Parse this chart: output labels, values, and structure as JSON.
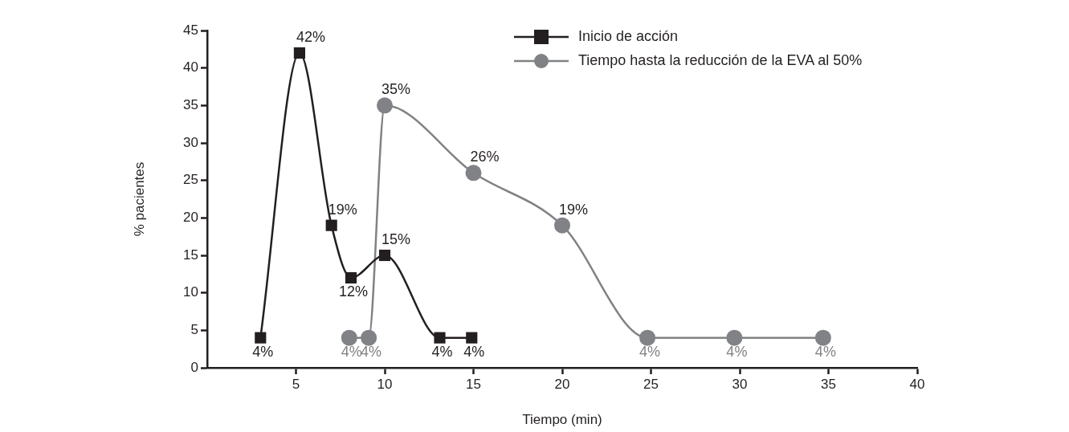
{
  "chart_data": {
    "type": "line",
    "xlabel": "Tiempo (min)",
    "ylabel": "% pacientes",
    "xlim": [
      0,
      40
    ],
    "xticks": [
      5,
      10,
      15,
      20,
      25,
      30,
      35,
      40
    ],
    "ylim": [
      0,
      45
    ],
    "yticks": [
      0,
      5,
      10,
      15,
      20,
      25,
      30,
      35,
      40,
      45
    ],
    "legend": "top",
    "series": [
      {
        "name": "Inicio de acción",
        "color": "#231f20",
        "marker": "square",
        "x": [
          3,
          5.2,
          7,
          8.1,
          10,
          13.1,
          14.9
        ],
        "values": [
          4,
          42,
          19,
          12,
          15,
          4,
          4
        ],
        "value_labels": [
          "4%",
          "42%",
          "19%",
          "12%",
          "15%",
          "4%",
          "4%"
        ]
      },
      {
        "name": "Tiempo hasta la reducción de la EVA al 50%",
        "color": "#808285",
        "marker": "circle",
        "x": [
          8,
          9.1,
          10,
          15,
          20,
          24.8,
          29.7,
          34.7
        ],
        "values": [
          4,
          4,
          35,
          26,
          19,
          4,
          4,
          4
        ],
        "value_labels": [
          "4%",
          "4%",
          "35%",
          "26%",
          "19%",
          "4%",
          "4%",
          "4%"
        ]
      }
    ]
  }
}
